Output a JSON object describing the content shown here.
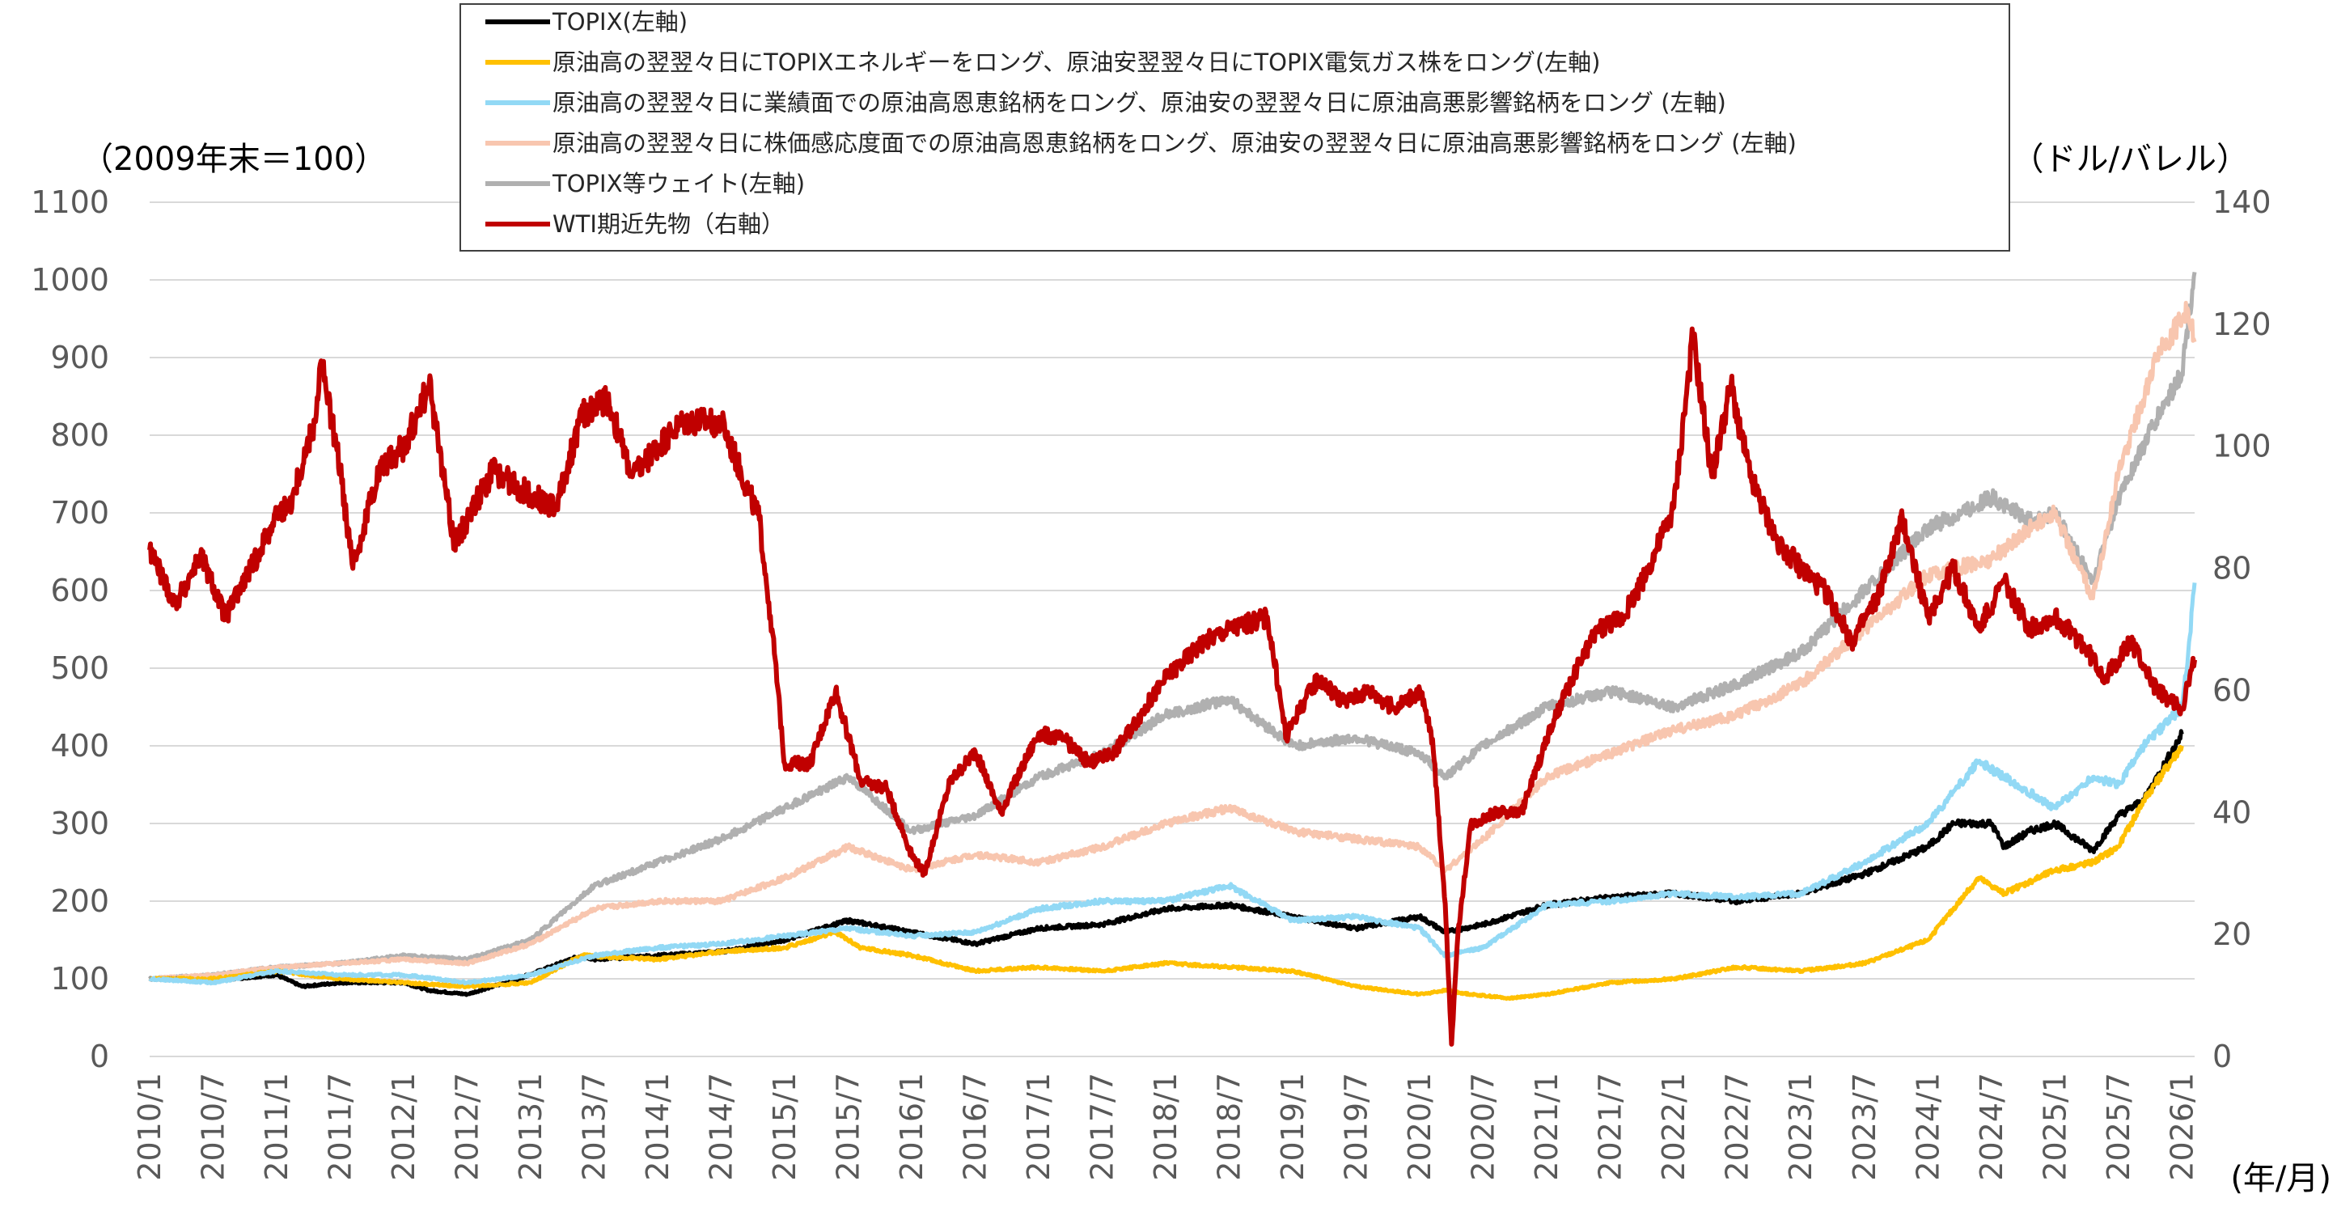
{
  "chart_data": {
    "type": "line",
    "left_unit_label": "（2009年末＝100）",
    "right_unit_label": "（ドル/バレル）",
    "x_unit_label": "(年/月)",
    "left_axis": {
      "min": 0,
      "max": 1100,
      "ticks": [
        0,
        100,
        200,
        300,
        400,
        500,
        600,
        700,
        800,
        900,
        1000,
        1100
      ]
    },
    "right_axis": {
      "min": 0,
      "max": 140,
      "ticks": [
        0,
        20,
        40,
        60,
        80,
        100,
        120,
        140
      ]
    },
    "x_range": [
      2010.0,
      2026.1
    ],
    "x_ticks": [
      "2010/1",
      "2010/7",
      "2011/1",
      "2011/7",
      "2012/1",
      "2012/7",
      "2013/1",
      "2013/7",
      "2014/1",
      "2014/7",
      "2015/1",
      "2015/7",
      "2016/1",
      "2016/7",
      "2017/1",
      "2017/7",
      "2018/1",
      "2018/7",
      "2019/1",
      "2019/7",
      "2020/1",
      "2020/7",
      "2021/1",
      "2021/7",
      "2022/1",
      "2022/7",
      "2023/1",
      "2023/7",
      "2024/1",
      "2024/7",
      "2025/1",
      "2025/7",
      "2026/1"
    ],
    "grid": "horizontal",
    "legend_position": "top-center",
    "series": [
      {
        "name": "TOPIX(左軸)",
        "axis": "left",
        "color": "#000000",
        "x": [
          2010.0,
          2010.5,
          2011.0,
          2011.2,
          2011.5,
          2012.0,
          2012.2,
          2012.5,
          2012.9,
          2013.4,
          2013.5,
          2014.0,
          2014.5,
          2015.0,
          2015.5,
          2016.0,
          2016.5,
          2017.0,
          2017.5,
          2018.0,
          2018.5,
          2019.0,
          2019.5,
          2020.0,
          2020.2,
          2020.5,
          2021.0,
          2021.5,
          2022.0,
          2022.5,
          2023.0,
          2023.5,
          2024.0,
          2024.2,
          2024.5,
          2024.6,
          2024.8,
          2025.0,
          2025.3,
          2025.5,
          2025.7,
          2026.0
        ],
        "values": [
          100,
          98,
          105,
          90,
          95,
          95,
          85,
          80,
          100,
          130,
          125,
          130,
          135,
          150,
          175,
          160,
          145,
          165,
          170,
          190,
          195,
          180,
          165,
          180,
          160,
          170,
          195,
          205,
          210,
          200,
          210,
          235,
          270,
          300,
          300,
          270,
          290,
          300,
          265,
          310,
          330,
          415
        ]
      },
      {
        "name": "原油高の翌翌々日にTOPIXエネルギーをロング、原油安翌翌々日にTOPIX電気ガス株をロング(左軸)",
        "axis": "left",
        "color": "#FFC000",
        "x": [
          2010.0,
          2010.5,
          2011.0,
          2011.5,
          2012.0,
          2012.5,
          2013.0,
          2013.4,
          2014.0,
          2014.5,
          2015.0,
          2015.4,
          2015.6,
          2016.0,
          2016.5,
          2017.0,
          2017.5,
          2018.0,
          2018.5,
          2019.0,
          2019.5,
          2020.0,
          2020.2,
          2020.4,
          2020.7,
          2021.0,
          2021.5,
          2022.0,
          2022.5,
          2023.0,
          2023.5,
          2024.0,
          2024.4,
          2024.6,
          2025.0,
          2025.3,
          2025.5,
          2025.7,
          2026.0
        ],
        "values": [
          100,
          100,
          110,
          100,
          95,
          90,
          95,
          130,
          125,
          135,
          140,
          160,
          140,
          130,
          110,
          115,
          110,
          120,
          115,
          110,
          90,
          80,
          85,
          80,
          75,
          80,
          95,
          100,
          115,
          110,
          120,
          150,
          230,
          210,
          240,
          250,
          270,
          330,
          400
        ]
      },
      {
        "name": "原油高の翌翌々日に業績面での原油高恩恵銘柄をロング、原油安の翌翌々日に原油高悪影響銘柄をロング (左軸)",
        "axis": "left",
        "color": "#92D9F5",
        "x": [
          2010.0,
          2010.5,
          2011.0,
          2011.5,
          2012.0,
          2012.5,
          2013.0,
          2013.5,
          2014.0,
          2014.5,
          2015.0,
          2015.5,
          2016.0,
          2016.5,
          2017.0,
          2017.5,
          2018.0,
          2018.5,
          2019.0,
          2019.5,
          2020.0,
          2020.2,
          2020.5,
          2021.0,
          2021.5,
          2022.0,
          2022.5,
          2023.0,
          2023.5,
          2024.0,
          2024.4,
          2024.7,
          2025.0,
          2025.3,
          2025.5,
          2025.7,
          2026.0,
          2026.05,
          2026.1
        ],
        "values": [
          100,
          95,
          110,
          105,
          105,
          95,
          105,
          130,
          140,
          145,
          155,
          165,
          155,
          160,
          190,
          200,
          200,
          220,
          175,
          180,
          165,
          130,
          140,
          195,
          200,
          210,
          205,
          210,
          250,
          300,
          380,
          350,
          320,
          360,
          350,
          400,
          450,
          520,
          610
        ]
      },
      {
        "name": "原油高の翌翌々日に株価感応度面での原油高恩恵銘柄をロング、原油安の翌翌々日に原油高悪影響銘柄をロング (左軸)",
        "axis": "left",
        "color": "#F8C6AF",
        "x": [
          2010.0,
          2010.5,
          2011.0,
          2011.5,
          2012.0,
          2012.5,
          2013.0,
          2013.5,
          2014.0,
          2014.5,
          2015.0,
          2015.5,
          2016.0,
          2016.5,
          2017.0,
          2017.5,
          2018.0,
          2018.5,
          2019.0,
          2019.5,
          2020.0,
          2020.2,
          2020.5,
          2021.0,
          2021.5,
          2022.0,
          2022.5,
          2023.0,
          2023.5,
          2024.0,
          2024.5,
          2024.8,
          2025.0,
          2025.3,
          2025.5,
          2025.8,
          2026.0,
          2026.05,
          2026.1
        ],
        "values": [
          100,
          105,
          115,
          120,
          125,
          120,
          145,
          190,
          200,
          200,
          230,
          270,
          240,
          260,
          250,
          270,
          300,
          320,
          290,
          280,
          270,
          240,
          280,
          360,
          390,
          420,
          440,
          480,
          550,
          620,
          640,
          680,
          700,
          590,
          750,
          900,
          950,
          960,
          920
        ]
      },
      {
        "name": "TOPIX等ウェイト(左軸)",
        "axis": "left",
        "color": "#B0B0B0",
        "x": [
          2010.0,
          2010.5,
          2011.0,
          2011.5,
          2012.0,
          2012.5,
          2013.0,
          2013.5,
          2014.0,
          2014.5,
          2015.0,
          2015.5,
          2016.0,
          2016.5,
          2017.0,
          2017.5,
          2018.0,
          2018.5,
          2019.0,
          2019.5,
          2020.0,
          2020.2,
          2020.5,
          2021.0,
          2021.5,
          2022.0,
          2022.5,
          2023.0,
          2023.5,
          2024.0,
          2024.5,
          2024.8,
          2025.0,
          2025.3,
          2025.5,
          2025.8,
          2026.0,
          2026.1
        ],
        "values": [
          100,
          105,
          115,
          120,
          130,
          125,
          150,
          220,
          250,
          280,
          320,
          360,
          290,
          310,
          360,
          390,
          440,
          460,
          400,
          410,
          390,
          360,
          400,
          450,
          470,
          450,
          480,
          520,
          600,
          680,
          720,
          690,
          700,
          610,
          720,
          820,
          880,
          1010
        ]
      },
      {
        "name": "WTI期近先物（右軸）",
        "axis": "right",
        "color": "#C00000",
        "x": [
          2010.0,
          2010.2,
          2010.4,
          2010.6,
          2010.8,
          2011.0,
          2011.1,
          2011.3,
          2011.35,
          2011.5,
          2011.6,
          2011.8,
          2012.0,
          2012.2,
          2012.4,
          2012.5,
          2012.7,
          2013.0,
          2013.2,
          2013.4,
          2013.6,
          2013.8,
          2014.0,
          2014.2,
          2014.5,
          2014.8,
          2014.9,
          2015.0,
          2015.2,
          2015.4,
          2015.6,
          2015.8,
          2016.0,
          2016.1,
          2016.3,
          2016.5,
          2016.7,
          2017.0,
          2017.2,
          2017.4,
          2017.6,
          2018.0,
          2018.3,
          2018.5,
          2018.8,
          2018.95,
          2019.0,
          2019.2,
          2019.4,
          2019.6,
          2019.8,
          2020.0,
          2020.1,
          2020.2,
          2020.25,
          2020.3,
          2020.4,
          2020.6,
          2020.8,
          2021.0,
          2021.2,
          2021.4,
          2021.6,
          2021.8,
          2022.0,
          2022.15,
          2022.3,
          2022.45,
          2022.6,
          2022.8,
          2023.0,
          2023.2,
          2023.4,
          2023.6,
          2023.8,
          2024.0,
          2024.2,
          2024.4,
          2024.6,
          2024.8,
          2025.0,
          2025.2,
          2025.4,
          2025.6,
          2025.8,
          2026.0,
          2026.1
        ],
        "values": [
          83,
          74,
          82,
          72,
          80,
          89,
          90,
          104,
          114,
          96,
          80,
          96,
          100,
          110,
          84,
          88,
          96,
          92,
          90,
          105,
          108,
          95,
          100,
          104,
          104,
          88,
          70,
          48,
          48,
          60,
          45,
          44,
          33,
          30,
          45,
          50,
          40,
          53,
          52,
          48,
          50,
          62,
          68,
          70,
          72,
          52,
          55,
          62,
          58,
          60,
          57,
          60,
          52,
          25,
          2,
          20,
          38,
          40,
          40,
          52,
          62,
          70,
          72,
          80,
          90,
          118,
          95,
          110,
          95,
          85,
          80,
          76,
          68,
          75,
          88,
          72,
          80,
          70,
          78,
          70,
          72,
          68,
          62,
          68,
          60,
          57,
          65
        ]
      }
    ]
  }
}
